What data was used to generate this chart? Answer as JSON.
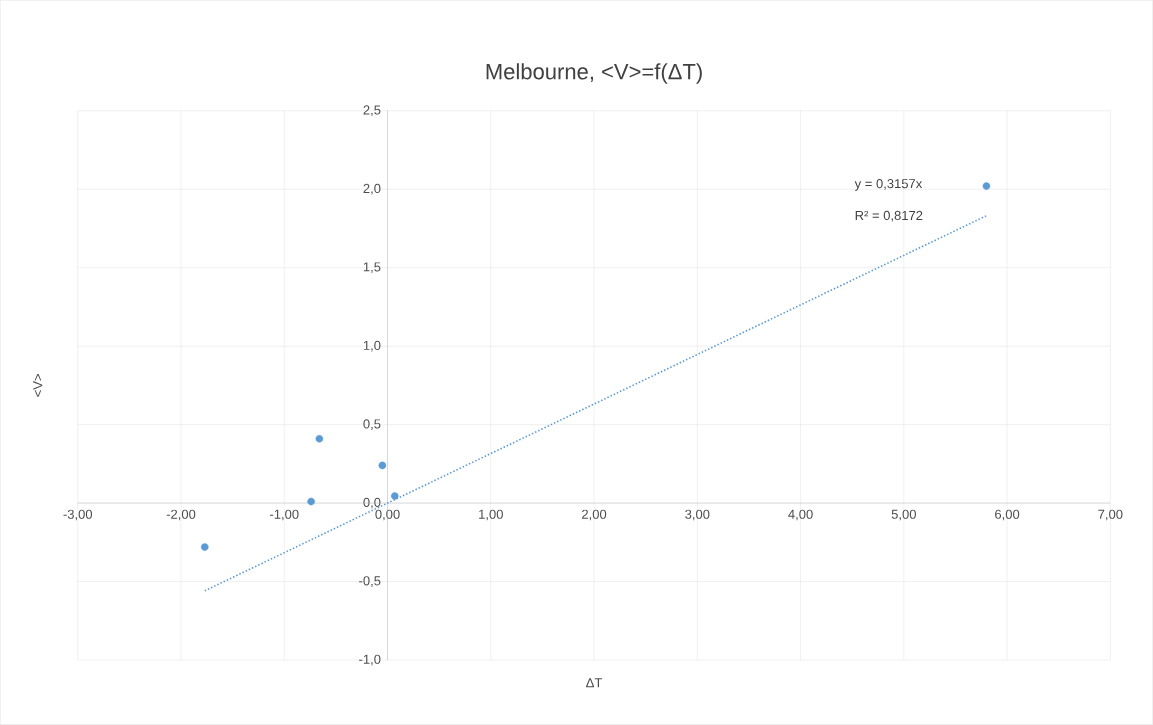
{
  "chart_data": {
    "type": "scatter",
    "title": "Melbourne, <V>=f(ΔT)",
    "xlabel": "ΔT",
    "ylabel": "<V>",
    "series": [
      {
        "color": "#5b9bd5",
        "marker": "circle",
        "x": [
          -1.77,
          -0.74,
          -0.66,
          -0.05,
          0.07,
          5.8
        ],
        "values": [
          -0.28,
          0.01,
          0.41,
          0.24,
          0.045,
          2.02
        ]
      },
      {
        "type": "line",
        "color": "#5b9bd5",
        "marker": "none",
        "line_style": "dotted",
        "x": [
          -1.77,
          5.8
        ],
        "values": [
          -0.559,
          1.831
        ]
      }
    ],
    "annotations": [
      "y = 0,3157x",
      "R² = 0,8172"
    ],
    "xlim": [
      -3,
      7
    ],
    "ylim": [
      -1,
      2.5
    ],
    "xticks": [
      {
        "value": -3,
        "label": "-3,00"
      },
      {
        "value": -2,
        "label": "-2,00"
      },
      {
        "value": -1,
        "label": "-1,00"
      },
      {
        "value": 0,
        "label": "0,00"
      },
      {
        "value": 1,
        "label": "1,00"
      },
      {
        "value": 2,
        "label": "2,00"
      },
      {
        "value": 3,
        "label": "3,00"
      },
      {
        "value": 4,
        "label": "4,00"
      },
      {
        "value": 5,
        "label": "5,00"
      },
      {
        "value": 6,
        "label": "6,00"
      },
      {
        "value": 7,
        "label": "7,00"
      }
    ],
    "yticks": [
      {
        "value": -1,
        "label": "-1,0"
      },
      {
        "value": -0.5,
        "label": "-0,5"
      },
      {
        "value": 0,
        "label": "0,0"
      },
      {
        "value": 0.5,
        "label": "0,5"
      },
      {
        "value": 1,
        "label": "1,0"
      },
      {
        "value": 1.5,
        "label": "1,5"
      },
      {
        "value": 2,
        "label": "2,0"
      },
      {
        "value": 2.5,
        "label": "2,5"
      }
    ],
    "grid": true
  }
}
